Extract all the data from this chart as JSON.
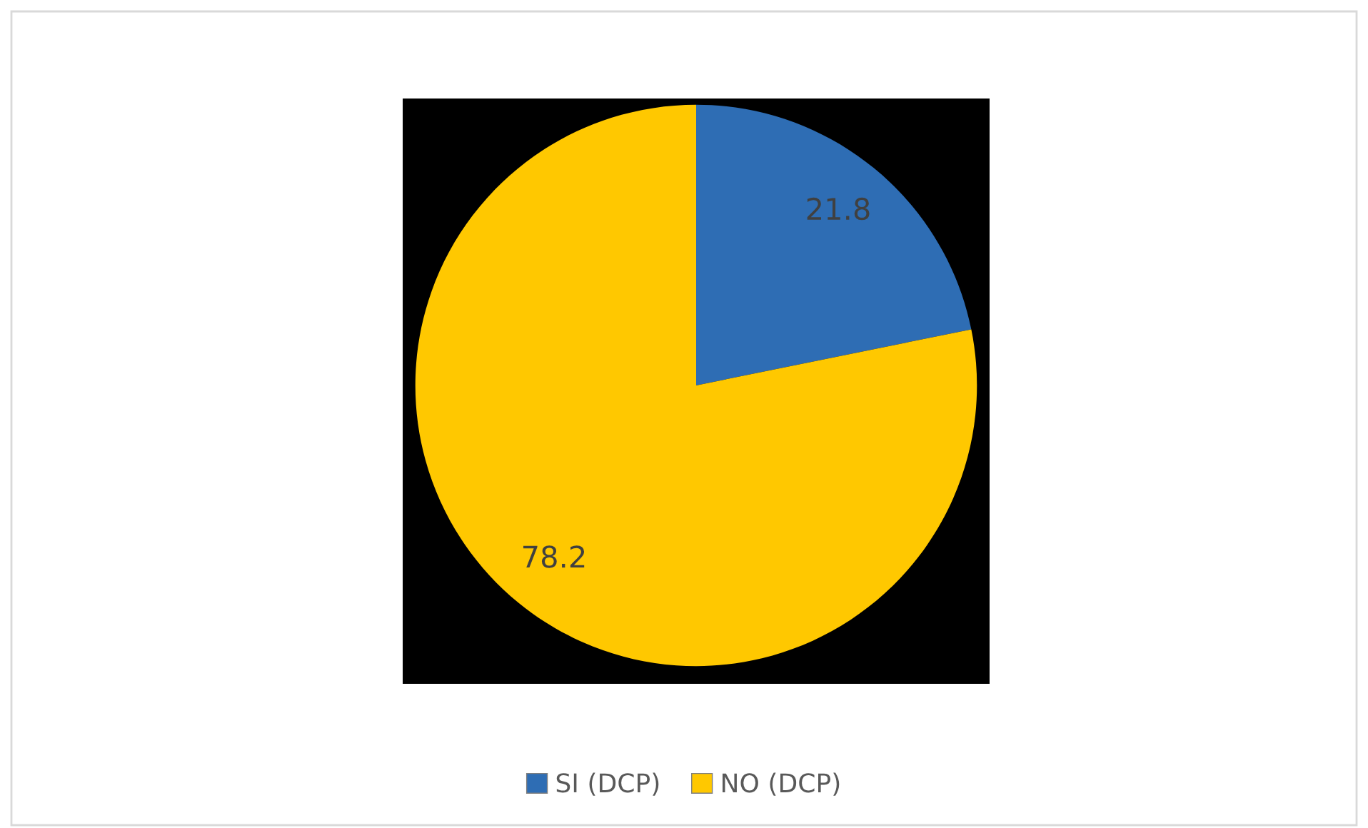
{
  "chart_data": {
    "type": "pie",
    "categories": [
      "SI (DCP)",
      "NO (DCP)"
    ],
    "values": [
      21.8,
      78.2
    ],
    "colors": [
      "#2e6db4",
      "#ffc800"
    ],
    "data_labels": true,
    "legend": "bottom"
  }
}
